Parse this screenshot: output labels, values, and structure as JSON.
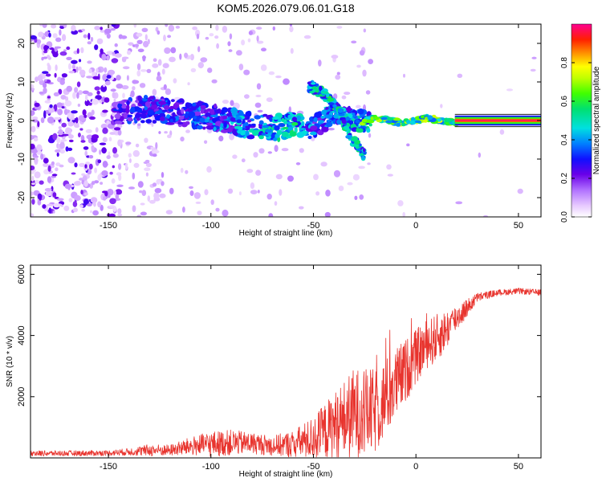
{
  "title": "KOM5.2026.079.06.01.G18",
  "chart_data": [
    {
      "type": "heatmap",
      "xlabel": "Height of straight line (km)",
      "ylabel": "Frequency (Hz)",
      "xlim": [
        -188,
        61
      ],
      "ylim": [
        -25,
        25
      ],
      "xticks": [
        "-150",
        "-100",
        "-50",
        "0",
        "50"
      ],
      "xtick_values": [
        -150,
        -100,
        -50,
        0,
        50
      ],
      "yticks": [
        "20",
        "10",
        "0",
        "-10",
        "-20"
      ],
      "ytick_values": [
        20,
        10,
        0,
        -10,
        -20
      ],
      "colorbar": {
        "label": "Normalized spectral amplitude",
        "range": [
          0,
          1
        ],
        "ticks": [
          "0.0",
          "0.2",
          "0.4",
          "0.6",
          "0.8"
        ],
        "tick_values": [
          0.0,
          0.2,
          0.4,
          0.6,
          0.8
        ]
      },
      "trace": {
        "description": "narrow-band carrier near 0 Hz becomes coherent above about -25 km",
        "x": [
          -145,
          -130,
          -115,
          -100,
          -85,
          -70,
          -60,
          -50,
          -40,
          -30,
          -20,
          -10,
          0,
          10,
          20,
          40,
          61
        ],
        "freq": [
          2,
          3,
          2,
          1,
          -1,
          -2,
          -1,
          -2,
          2,
          0,
          0,
          0,
          0,
          0,
          0,
          0,
          0
        ],
        "amplitude": [
          0.3,
          0.35,
          0.35,
          0.4,
          0.45,
          0.5,
          0.55,
          0.4,
          0.45,
          0.5,
          0.55,
          0.6,
          0.7,
          0.75,
          0.8,
          0.85,
          0.9
        ]
      },
      "branch": {
        "description": "secondary scattered component",
        "x": [
          -52,
          -45,
          -38,
          -32,
          -25
        ],
        "freq": [
          9,
          7,
          3,
          -4,
          -9
        ]
      }
    },
    {
      "type": "line",
      "xlabel": "Height of straight line (km)",
      "ylabel": "SNR (10 * v/v)",
      "xlim": [
        -188,
        61
      ],
      "ylim": [
        0,
        6300
      ],
      "xticks": [
        "-150",
        "-100",
        "-50",
        "0",
        "50"
      ],
      "xtick_values": [
        -150,
        -100,
        -50,
        0,
        50
      ],
      "yticks": [
        "2000",
        "4000",
        "6000"
      ],
      "ytick_values": [
        2000,
        4000,
        6000
      ],
      "color": "#e8342e",
      "envelope": {
        "x": [
          -188,
          -170,
          -150,
          -140,
          -130,
          -120,
          -110,
          -100,
          -90,
          -80,
          -70,
          -60,
          -50,
          -40,
          -30,
          -20,
          -10,
          0,
          5,
          10,
          15,
          20,
          25,
          30,
          40,
          50,
          61
        ],
        "mean": [
          150,
          150,
          160,
          200,
          250,
          250,
          380,
          450,
          500,
          480,
          400,
          450,
          650,
          1050,
          1450,
          1500,
          2400,
          3300,
          3700,
          3900,
          4200,
          4600,
          4900,
          5250,
          5400,
          5450,
          5400
        ],
        "jitter": [
          90,
          90,
          90,
          120,
          200,
          180,
          300,
          420,
          420,
          350,
          330,
          450,
          700,
          1100,
          1500,
          1400,
          1200,
          900,
          800,
          800,
          650,
          450,
          300,
          150,
          100,
          100,
          100
        ]
      }
    }
  ]
}
